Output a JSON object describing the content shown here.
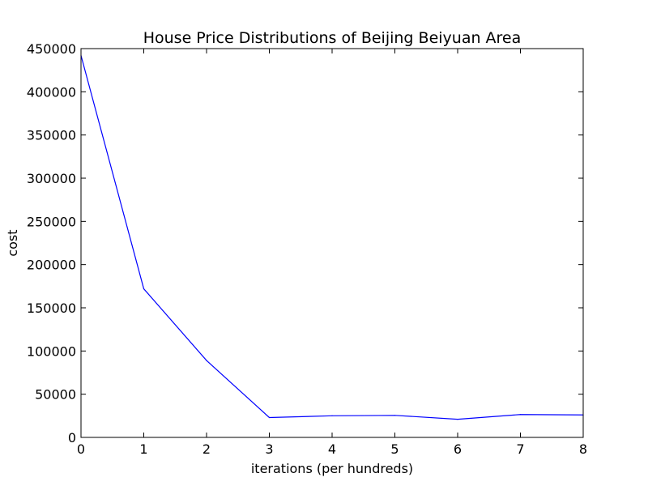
{
  "chart_data": {
    "type": "line",
    "title": "House Price Distributions of Beijing Beiyuan Area",
    "xlabel": "iterations (per hundreds)",
    "ylabel": "cost",
    "xlim": [
      0,
      8
    ],
    "ylim": [
      0,
      450000
    ],
    "x_ticks": [
      0,
      1,
      2,
      3,
      4,
      5,
      6,
      7,
      8
    ],
    "y_ticks": [
      0,
      50000,
      100000,
      150000,
      200000,
      250000,
      300000,
      350000,
      400000,
      450000
    ],
    "grid": false,
    "series": [
      {
        "color": "#0000ff",
        "x": [
          0,
          1,
          2,
          3,
          4,
          5,
          6,
          7,
          8
        ],
        "y": [
          442000,
          172000,
          89000,
          23000,
          25000,
          25500,
          21000,
          26500,
          26000
        ]
      }
    ]
  }
}
